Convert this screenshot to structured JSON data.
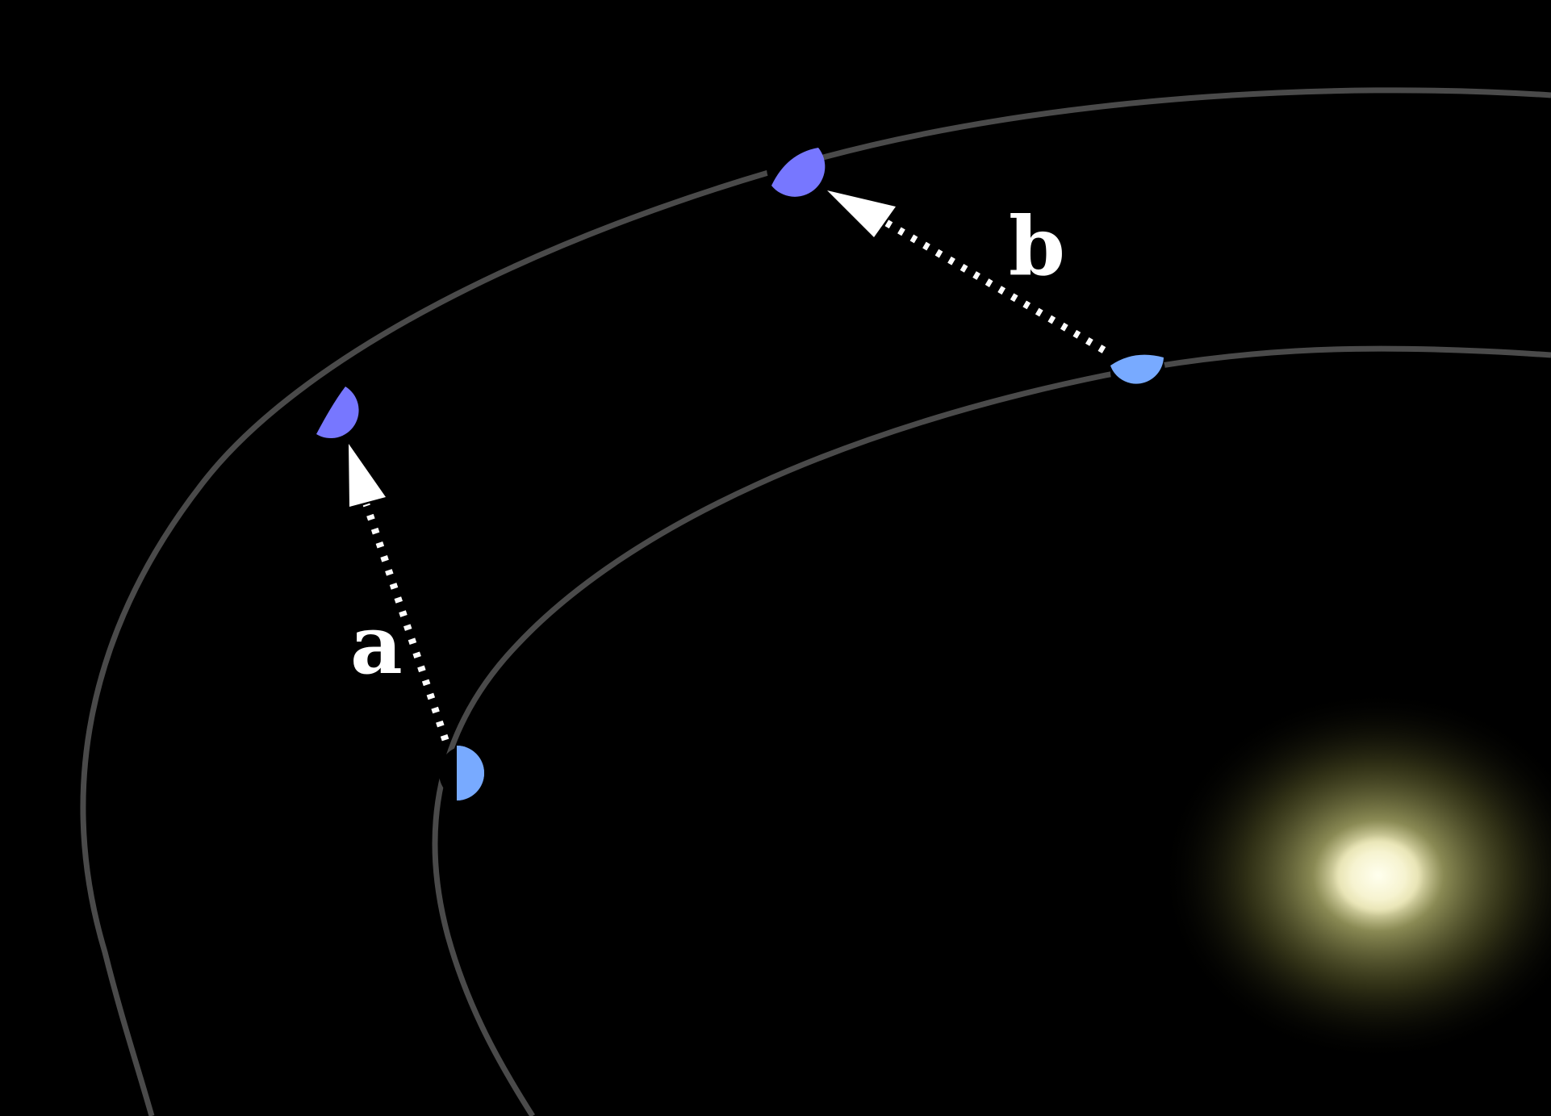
{
  "labels": {
    "a": "a",
    "b": "b"
  },
  "colors": {
    "background": "#000000",
    "orbit": "#4a4a4a",
    "inner_planet": "#78aaff",
    "outer_planet": "#7777ff",
    "arrow": "#ffffff",
    "star_core": "#fffbe0",
    "star_glow": "#c8c878"
  },
  "icons": {
    "star": "sun-icon",
    "inner_planet": "half-lit-planet-icon",
    "outer_planet": "half-lit-planet-icon"
  }
}
